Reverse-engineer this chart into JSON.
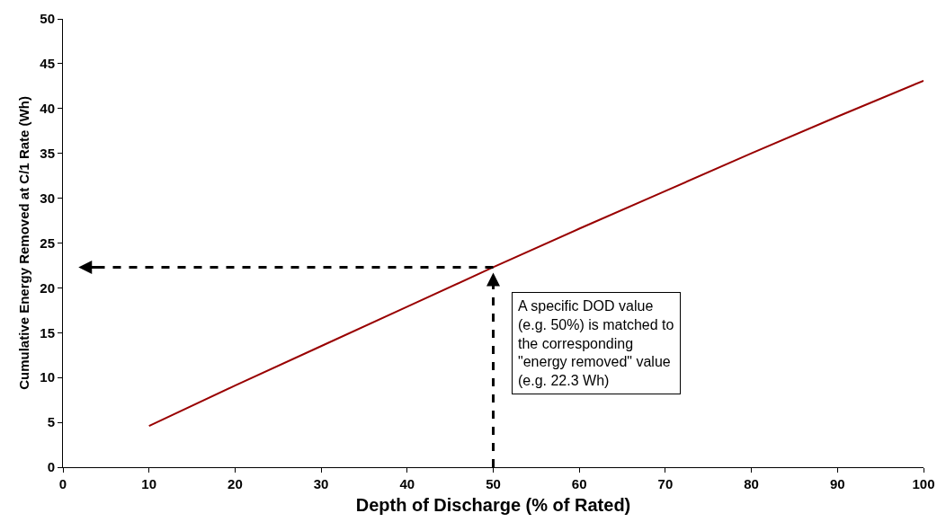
{
  "chart_data": {
    "type": "line",
    "xlabel": "Depth of Discharge (% of Rated)",
    "ylabel": "Cumulative Energy Removed at C/1 Rate (Wh)",
    "x": [
      10,
      20,
      30,
      40,
      50,
      60,
      70,
      80,
      90,
      100
    ],
    "series": [
      {
        "color": "#990000",
        "values": [
          4.6,
          9.1,
          13.5,
          17.9,
          22.3,
          26.6,
          30.8,
          35.0,
          39.1,
          43.1
        ]
      }
    ],
    "xlim": [
      0,
      100
    ],
    "xticks": [
      0,
      10,
      20,
      30,
      40,
      50,
      60,
      70,
      80,
      90,
      100
    ],
    "ylim": [
      0,
      50
    ],
    "yticks": [
      0,
      5,
      10,
      15,
      20,
      25,
      30,
      35,
      40,
      45,
      50
    ],
    "marker": "none",
    "line_style": "solid",
    "annotations": [
      {
        "text": "A specific DOD value\n(e.g. 50%) is matched to\nthe corresponding\n\"energy removed\" value\n(e.g. 22.3 Wh)",
        "x": 50,
        "y": 22.3
      }
    ]
  }
}
